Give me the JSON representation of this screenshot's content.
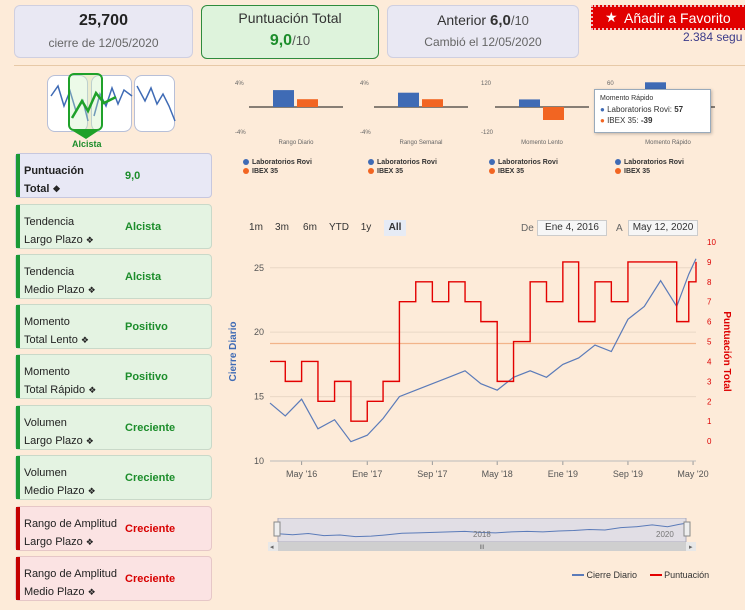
{
  "header": {
    "price_value": "25,700",
    "price_caption": "cierre de 12/05/2020",
    "score_title": "Puntuación Total",
    "score_value": "9,0",
    "score_denominator": "/10",
    "previous_label": "Anterior",
    "previous_value": "6,0",
    "previous_denominator": "/10",
    "previous_caption": "Cambió el 12/05/2020",
    "favorite_label": "Añadir a Favorito",
    "followers_text": "2.384 segu"
  },
  "trend_panel": {
    "label": "Alcista"
  },
  "metrics": [
    {
      "line1": "Puntuación",
      "line2": "Total",
      "value": "9,0",
      "tone": "lav",
      "bold": true
    },
    {
      "line1": "Tendencia",
      "line2": "Largo Plazo",
      "value": "Alcista",
      "tone": "green"
    },
    {
      "line1": "Tendencia",
      "line2": "Medio Plazo",
      "value": "Alcista",
      "tone": "green"
    },
    {
      "line1": "Momento",
      "line2": "Total Lento",
      "value": "Positivo",
      "tone": "green"
    },
    {
      "line1": "Momento",
      "line2": "Total Rápido",
      "value": "Positivo",
      "tone": "green"
    },
    {
      "line1": "Volumen",
      "line2": "Largo Plazo",
      "value": "Creciente",
      "tone": "green"
    },
    {
      "line1": "Volumen",
      "line2": "Medio Plazo",
      "value": "Creciente",
      "tone": "green"
    },
    {
      "line1": "Rango de Amplitud",
      "line2": "Largo Plazo",
      "value": "Creciente",
      "tone": "red"
    },
    {
      "line1": "Rango de Amplitud",
      "line2": "Medio Plazo",
      "value": "Creciente",
      "tone": "red"
    }
  ],
  "chart_data": [
    {
      "type": "bar",
      "title": "Rango Diario",
      "series": [
        {
          "name": "Laboratorios Rovi",
          "values": [
            2.6
          ]
        },
        {
          "name": "IBEX 35",
          "values": [
            1.2
          ]
        }
      ],
      "ylim": [
        -4,
        4
      ],
      "ytick_labels": [
        "4%",
        "-4%"
      ]
    },
    {
      "type": "bar",
      "title": "Rango Semanal",
      "series": [
        {
          "name": "Laboratorios Rovi",
          "values": [
            2.2
          ]
        },
        {
          "name": "IBEX 35",
          "values": [
            1.2
          ]
        }
      ],
      "ylim": [
        -4,
        4
      ],
      "ytick_labels": [
        "4%",
        "-4%"
      ]
    },
    {
      "type": "bar",
      "title": "Momento Lento",
      "series": [
        {
          "name": "Laboratorios Rovi",
          "values": [
            35
          ]
        },
        {
          "name": "IBEX 35",
          "values": [
            -60
          ]
        }
      ],
      "ylim": [
        -120,
        120
      ],
      "ytick_labels": [
        "120",
        "-120"
      ]
    },
    {
      "type": "bar",
      "title": "Momento Rápido",
      "series": [
        {
          "name": "Laboratorios Rovi",
          "values": [
            57
          ]
        },
        {
          "name": "IBEX 35",
          "values": [
            -39
          ]
        }
      ],
      "ylim": [
        -60,
        60
      ],
      "ytick_labels": [
        "60"
      ],
      "tooltip": {
        "title": "Momento Rápido",
        "rows": [
          {
            "name": "Laboratorios Rovi",
            "value": "57"
          },
          {
            "name": "IBEX 35",
            "value": "-39"
          }
        ]
      }
    },
    {
      "type": "line",
      "series": [
        {
          "name": "Cierre Diario",
          "axis": "left",
          "x": [
            "2016-01-04",
            "2016-03-01",
            "2016-05-01",
            "2016-07-01",
            "2016-09-01",
            "2016-11-01",
            "2017-01-01",
            "2017-03-01",
            "2017-05-01",
            "2017-07-01",
            "2017-09-01",
            "2017-11-01",
            "2018-01-01",
            "2018-03-01",
            "2018-05-01",
            "2018-07-01",
            "2018-09-01",
            "2018-11-01",
            "2019-01-01",
            "2019-03-01",
            "2019-05-01",
            "2019-07-01",
            "2019-09-01",
            "2019-11-01",
            "2020-01-01",
            "2020-03-01",
            "2020-04-15",
            "2020-05-12"
          ],
          "values": [
            14.5,
            13.5,
            14.8,
            12.5,
            13.2,
            11.5,
            12.0,
            13.3,
            15.0,
            15.5,
            16.0,
            16.5,
            17.0,
            16.0,
            15.5,
            16.5,
            17.0,
            16.5,
            17.5,
            18.0,
            19.0,
            18.5,
            21.0,
            22.0,
            24.0,
            22.0,
            24.5,
            25.7
          ]
        },
        {
          "name": "Puntuación",
          "axis": "right",
          "x": [
            "2016-01-04",
            "2016-03-01",
            "2016-05-01",
            "2016-07-01",
            "2016-09-01",
            "2016-11-01",
            "2017-01-01",
            "2017-03-01",
            "2017-05-01",
            "2017-07-01",
            "2017-09-01",
            "2017-11-01",
            "2018-01-01",
            "2018-03-01",
            "2018-05-01",
            "2018-07-01",
            "2018-09-01",
            "2018-11-01",
            "2019-01-01",
            "2019-03-01",
            "2019-05-01",
            "2019-07-01",
            "2019-09-01",
            "2019-11-01",
            "2020-01-01",
            "2020-03-01",
            "2020-04-15",
            "2020-05-12"
          ],
          "values": [
            4,
            3,
            4,
            2,
            3,
            1,
            2,
            3,
            7,
            8,
            7,
            8,
            7,
            6,
            3,
            5,
            8,
            7,
            9,
            6,
            8,
            7,
            9,
            9,
            9,
            6,
            8,
            9
          ]
        }
      ],
      "yleft": {
        "label": "Cierre Diario",
        "ticks": [
          10,
          15,
          20,
          25
        ],
        "range": [
          10,
          27
        ]
      },
      "yright": {
        "label": "Puntuación Total",
        "ticks": [
          0,
          1,
          2,
          3,
          4,
          5,
          6,
          7,
          8,
          9,
          10
        ],
        "range": [
          -1,
          10
        ]
      },
      "xtick_labels": [
        "May '16",
        "Ene '17",
        "Sep '17",
        "May '18",
        "Ene '19",
        "Sep '19",
        "May '20"
      ],
      "legend": [
        "Cierre Diario",
        "Puntuación"
      ],
      "legend_position": "bottom-right"
    }
  ],
  "range_selector": {
    "buttons": [
      "1m",
      "3m",
      "6m",
      "YTD",
      "1y",
      "All"
    ],
    "active": "All",
    "from_label": "De",
    "from_value": "Ene 4, 2016",
    "to_label": "A",
    "to_value": "May 12, 2020"
  },
  "navigator": {
    "labels": [
      "2018",
      "2020"
    ],
    "scroll_label": "III"
  },
  "legends_small": [
    "Laboratorios Rovi",
    "IBEX 35"
  ],
  "colors": {
    "rovi": "#3f6bb5",
    "ibex": "#f26522",
    "score": "#e30000",
    "accent": "#1c8d2b"
  }
}
